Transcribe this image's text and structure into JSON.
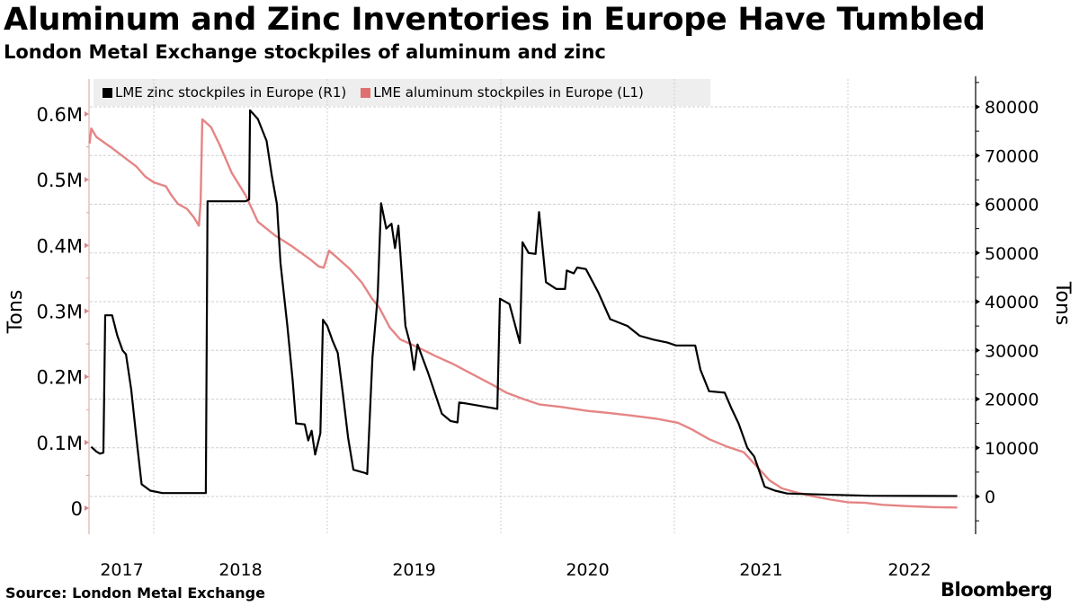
{
  "header": {
    "title": "Aluminum and Zinc Inventories in Europe Have Tumbled",
    "subtitle": "London Metal Exchange stockpiles of aluminum and zinc"
  },
  "footer": {
    "source": "Source: London Metal Exchange",
    "brand": "Bloomberg"
  },
  "colors": {
    "zinc": "#000000",
    "aluminum": "#e07070",
    "left_axis": "#d9a0a0",
    "grid": "#cfcfcf",
    "legend_bg": "#eeeeee"
  },
  "chart_data": {
    "type": "line",
    "title": "Aluminum and Zinc Inventories in Europe Have Tumbled",
    "subtitle": "London Metal Exchange stockpiles of aluminum and zinc",
    "xlabel": "",
    "ylabel_left": "Tons",
    "ylabel_right": "Tons",
    "x_ticks": [
      "2017",
      "2018",
      "2019",
      "2020",
      "2021",
      "2022"
    ],
    "xlim": [
      2017.63,
      2022.68
    ],
    "ylim_left": [
      0,
      600000
    ],
    "left_ticks": [
      {
        "value": 0,
        "label": "0"
      },
      {
        "value": 100000,
        "label": "0.1M"
      },
      {
        "value": 200000,
        "label": "0.2M"
      },
      {
        "value": 300000,
        "label": "0.3M"
      },
      {
        "value": 400000,
        "label": "0.4M"
      },
      {
        "value": 500000,
        "label": "0.5M"
      },
      {
        "value": 600000,
        "label": "0.6M"
      }
    ],
    "ylim_right": [
      0,
      80000
    ],
    "right_ticks": [
      {
        "value": 0,
        "label": "0"
      },
      {
        "value": 10000,
        "label": "10000"
      },
      {
        "value": 20000,
        "label": "20000"
      },
      {
        "value": 30000,
        "label": "30000"
      },
      {
        "value": 40000,
        "label": "40000"
      },
      {
        "value": 50000,
        "label": "50000"
      },
      {
        "value": 60000,
        "label": "60000"
      },
      {
        "value": 70000,
        "label": "70000"
      },
      {
        "value": 80000,
        "label": "80000"
      }
    ],
    "grid": true,
    "legend_position": "top-left",
    "series": [
      {
        "name": "LME zinc stockpiles in Europe (R1)",
        "axis": "right",
        "points": [
          [
            2017.64,
            10200
          ],
          [
            2017.67,
            9200
          ],
          [
            2017.69,
            8800
          ],
          [
            2017.71,
            9000
          ],
          [
            2017.72,
            37200
          ],
          [
            2017.76,
            37200
          ],
          [
            2017.79,
            33000
          ],
          [
            2017.82,
            30000
          ],
          [
            2017.84,
            29200
          ],
          [
            2017.87,
            22000
          ],
          [
            2017.9,
            12000
          ],
          [
            2017.93,
            2500
          ],
          [
            2017.98,
            1200
          ],
          [
            2018.05,
            700
          ],
          [
            2018.3,
            700
          ],
          [
            2018.31,
            60600
          ],
          [
            2018.53,
            60600
          ],
          [
            2018.55,
            61000
          ],
          [
            2018.555,
            79300
          ],
          [
            2018.6,
            77500
          ],
          [
            2018.65,
            73000
          ],
          [
            2018.68,
            66000
          ],
          [
            2018.71,
            60000
          ],
          [
            2018.73,
            48000
          ],
          [
            2018.77,
            35000
          ],
          [
            2018.8,
            24000
          ],
          [
            2018.82,
            15000
          ],
          [
            2018.87,
            14800
          ],
          [
            2018.89,
            11500
          ],
          [
            2018.91,
            13500
          ],
          [
            2018.93,
            8600
          ],
          [
            2018.96,
            13000
          ],
          [
            2018.975,
            36300
          ],
          [
            2019.0,
            35000
          ],
          [
            2019.03,
            32000
          ],
          [
            2019.06,
            29500
          ],
          [
            2019.09,
            21000
          ],
          [
            2019.12,
            12000
          ],
          [
            2019.15,
            5500
          ],
          [
            2019.22,
            4800
          ],
          [
            2019.23,
            4600
          ],
          [
            2019.26,
            28500
          ],
          [
            2019.29,
            41000
          ],
          [
            2019.31,
            60200
          ],
          [
            2019.34,
            55000
          ],
          [
            2019.37,
            56000
          ],
          [
            2019.39,
            51000
          ],
          [
            2019.41,
            55600
          ],
          [
            2019.45,
            35000
          ],
          [
            2019.48,
            31000
          ],
          [
            2019.5,
            26000
          ],
          [
            2019.52,
            31200
          ],
          [
            2019.58,
            25500
          ],
          [
            2019.66,
            17000
          ],
          [
            2019.71,
            15500
          ],
          [
            2019.75,
            15200
          ],
          [
            2019.76,
            19300
          ],
          [
            2019.8,
            19100
          ],
          [
            2019.88,
            18600
          ],
          [
            2019.98,
            18000
          ],
          [
            2019.995,
            40600
          ],
          [
            2020.05,
            39500
          ],
          [
            2020.11,
            31500
          ],
          [
            2020.125,
            52200
          ],
          [
            2020.16,
            50000
          ],
          [
            2020.2,
            49800
          ],
          [
            2020.22,
            58400
          ],
          [
            2020.26,
            44000
          ],
          [
            2020.32,
            42600
          ],
          [
            2020.37,
            42600
          ],
          [
            2020.38,
            46400
          ],
          [
            2020.42,
            45800
          ],
          [
            2020.44,
            47000
          ],
          [
            2020.49,
            46700
          ],
          [
            2020.56,
            42000
          ],
          [
            2020.63,
            36400
          ],
          [
            2020.73,
            35000
          ],
          [
            2020.8,
            33000
          ],
          [
            2020.88,
            32200
          ],
          [
            2020.96,
            31600
          ],
          [
            2021.01,
            31000
          ],
          [
            2021.12,
            31000
          ],
          [
            2021.15,
            26000
          ],
          [
            2021.2,
            21600
          ],
          [
            2021.29,
            21300
          ],
          [
            2021.33,
            18000
          ],
          [
            2021.37,
            15000
          ],
          [
            2021.42,
            10000
          ],
          [
            2021.46,
            8200
          ],
          [
            2021.52,
            2000
          ],
          [
            2021.58,
            1200
          ],
          [
            2021.65,
            600
          ],
          [
            2021.85,
            400
          ],
          [
            2022.12,
            150
          ],
          [
            2022.63,
            100
          ]
        ]
      },
      {
        "name": "LME aluminum stockpiles in Europe (L1)",
        "axis": "left",
        "points": [
          [
            2017.63,
            555000
          ],
          [
            2017.64,
            578000
          ],
          [
            2017.67,
            565000
          ],
          [
            2017.75,
            550000
          ],
          [
            2017.85,
            530000
          ],
          [
            2017.9,
            520000
          ],
          [
            2017.95,
            505000
          ],
          [
            2018.0,
            496000
          ],
          [
            2018.07,
            490000
          ],
          [
            2018.1,
            477000
          ],
          [
            2018.14,
            463000
          ],
          [
            2018.19,
            456000
          ],
          [
            2018.23,
            443000
          ],
          [
            2018.26,
            430000
          ],
          [
            2018.27,
            465000
          ],
          [
            2018.28,
            592000
          ],
          [
            2018.33,
            580000
          ],
          [
            2018.38,
            553000
          ],
          [
            2018.45,
            510000
          ],
          [
            2018.53,
            476000
          ],
          [
            2018.6,
            436000
          ],
          [
            2018.7,
            415000
          ],
          [
            2018.8,
            398000
          ],
          [
            2018.9,
            379000
          ],
          [
            2018.95,
            368000
          ],
          [
            2018.98,
            366000
          ],
          [
            2019.01,
            392000
          ],
          [
            2019.05,
            383000
          ],
          [
            2019.13,
            364000
          ],
          [
            2019.2,
            343000
          ],
          [
            2019.26,
            318000
          ],
          [
            2019.3,
            305000
          ],
          [
            2019.36,
            275000
          ],
          [
            2019.42,
            257000
          ],
          [
            2019.52,
            245000
          ],
          [
            2019.62,
            232000
          ],
          [
            2019.72,
            220000
          ],
          [
            2019.85,
            202000
          ],
          [
            2019.95,
            188000
          ],
          [
            2020.03,
            176000
          ],
          [
            2020.13,
            166000
          ],
          [
            2020.22,
            158000
          ],
          [
            2020.35,
            154000
          ],
          [
            2020.5,
            148000
          ],
          [
            2020.62,
            145000
          ],
          [
            2020.75,
            141000
          ],
          [
            2020.9,
            136000
          ],
          [
            2021.02,
            130000
          ],
          [
            2021.1,
            120000
          ],
          [
            2021.2,
            105000
          ],
          [
            2021.3,
            94000
          ],
          [
            2021.4,
            85000
          ],
          [
            2021.48,
            62000
          ],
          [
            2021.55,
            42000
          ],
          [
            2021.62,
            30000
          ],
          [
            2021.7,
            24000
          ],
          [
            2021.8,
            18000
          ],
          [
            2021.9,
            13000
          ],
          [
            2022.0,
            9000
          ],
          [
            2022.1,
            8000
          ],
          [
            2022.2,
            5000
          ],
          [
            2022.35,
            3000
          ],
          [
            2022.5,
            1500
          ],
          [
            2022.63,
            1000
          ]
        ]
      }
    ]
  }
}
